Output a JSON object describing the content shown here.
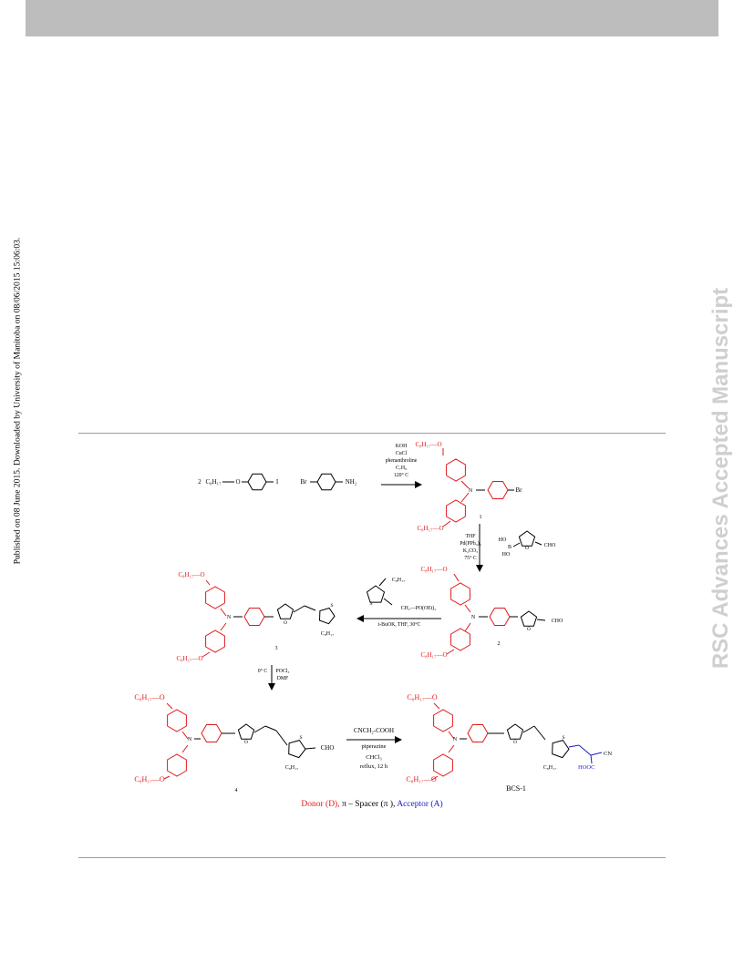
{
  "header": {
    "bar_color": "#bdbdbd"
  },
  "sidebar": {
    "published_note": "Published on 08 June 2015. Downloaded by University of Manitoba on 08/06/2015 15:06:03.",
    "journal_watermark": "RSC Advances Accepted Manuscript"
  },
  "colors": {
    "donor": "#e0191b",
    "acceptor": "#1a1ac8",
    "bond": "#000000"
  },
  "scheme": {
    "reactant_a_coeff": "2",
    "reactant_a_chain": "C₈H₁₇",
    "reactant_a_o": "O",
    "reactant_a_i": "I",
    "reactant_b_br": "Br",
    "reactant_b_nh2": "NH₂",
    "step1_conditions": [
      "KOH",
      "CuCl",
      "phenanthroline",
      "C₇H₈",
      "120° C"
    ],
    "compound1_label": "1",
    "compound1_br": "Br",
    "step2_conditions": [
      "THF",
      "Pd(PPh₃)₄",
      "K₂CO₃",
      "75° C"
    ],
    "boronic_ho1": "HO",
    "boronic_ho2": "HO",
    "boronic_b": "B",
    "boronic_o": "O",
    "boronic_cho": "CHO",
    "compound2_label": "2",
    "compound2_cho": "CHO",
    "step3_reagent_chain": "C₈H₁₇",
    "step3_reagent_s": "S",
    "step3_reagent": "CH₂—PO(OEt)₂",
    "step3_conditions": "t-BuOK, THF, 30°C",
    "compound3_label": "3",
    "compound3_chain": "C₈H₁₇",
    "step4_conditions": [
      "0° C",
      "POCl₃",
      "DMF"
    ],
    "compound4_label": "4",
    "compound4_chain": "C₈H₁₇",
    "compound4_cho": "CHO",
    "step5_conditions": [
      "CNCH₂-COOH",
      "piperazine",
      "CHCl₃",
      "reflux, 12 h"
    ],
    "final_label": "BCS-1",
    "final_chain": "C₈H₁₇",
    "final_cn": "CN",
    "final_hooc": "HOOC",
    "chain_top": "C₈H₁₇—O",
    "chain_bottom": "C₈H₁₇—O",
    "atom_n": "N",
    "atom_o": "O",
    "atom_s": "S"
  },
  "legend": {
    "donor": "Donor (D),",
    "spacer": " π – Spacer (π ),",
    "acceptor": " Acceptor (A)"
  }
}
